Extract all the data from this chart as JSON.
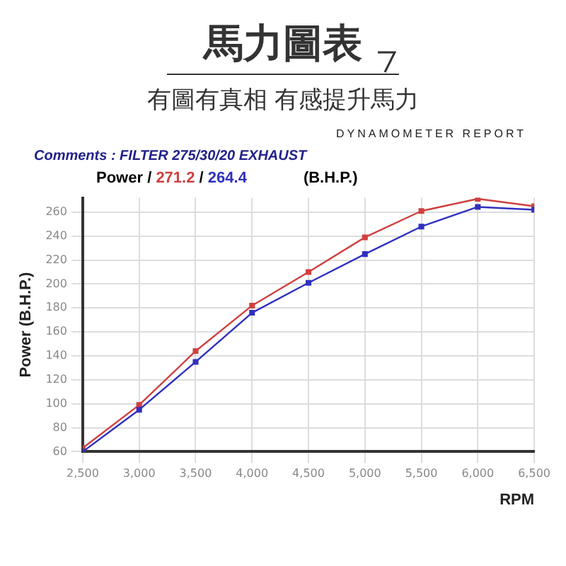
{
  "chart_data": {
    "type": "line",
    "title": "馬力圖表",
    "subtitle": "有圖有真相 有感提升馬力",
    "xlabel": "RPM",
    "ylabel": "Power (B.H.P.)",
    "annotations": [
      "DYNAMOMETER REPORT",
      "Comments :  FILTER 275/30/20 EXHAUST",
      "Power /",
      "/",
      "(B.H.P.)"
    ],
    "x": [
      2500,
      3000,
      3500,
      4000,
      4500,
      5000,
      5500,
      6000,
      6500
    ],
    "series": [
      {
        "name": "271.2",
        "color": "#d04040",
        "values": [
          63,
          99,
          144,
          182,
          210,
          239,
          261,
          271.2,
          265
        ]
      },
      {
        "name": "264.4",
        "color": "#3030c0",
        "values": [
          60,
          95,
          135,
          176,
          201,
          225,
          248,
          264.4,
          262
        ]
      }
    ],
    "xlim": [
      2500,
      6500
    ],
    "xticks": [
      {
        "value": 2500,
        "label": "2,500"
      },
      {
        "value": 3000,
        "label": "3,000"
      },
      {
        "value": 3500,
        "label": "3,500"
      },
      {
        "value": 4000,
        "label": "4,000"
      },
      {
        "value": 4500,
        "label": "4,500"
      },
      {
        "value": 5000,
        "label": "5,000"
      },
      {
        "value": 5500,
        "label": "5,500"
      },
      {
        "value": 6000,
        "label": "6,000"
      },
      {
        "value": 6500,
        "label": "6,500"
      }
    ],
    "ylim": [
      60,
      272
    ],
    "yticks": [
      60,
      80,
      100,
      120,
      140,
      160,
      180,
      200,
      220,
      240,
      260
    ],
    "grid": true,
    "legend": "top left",
    "marker": "square",
    "line_style": "solid"
  }
}
